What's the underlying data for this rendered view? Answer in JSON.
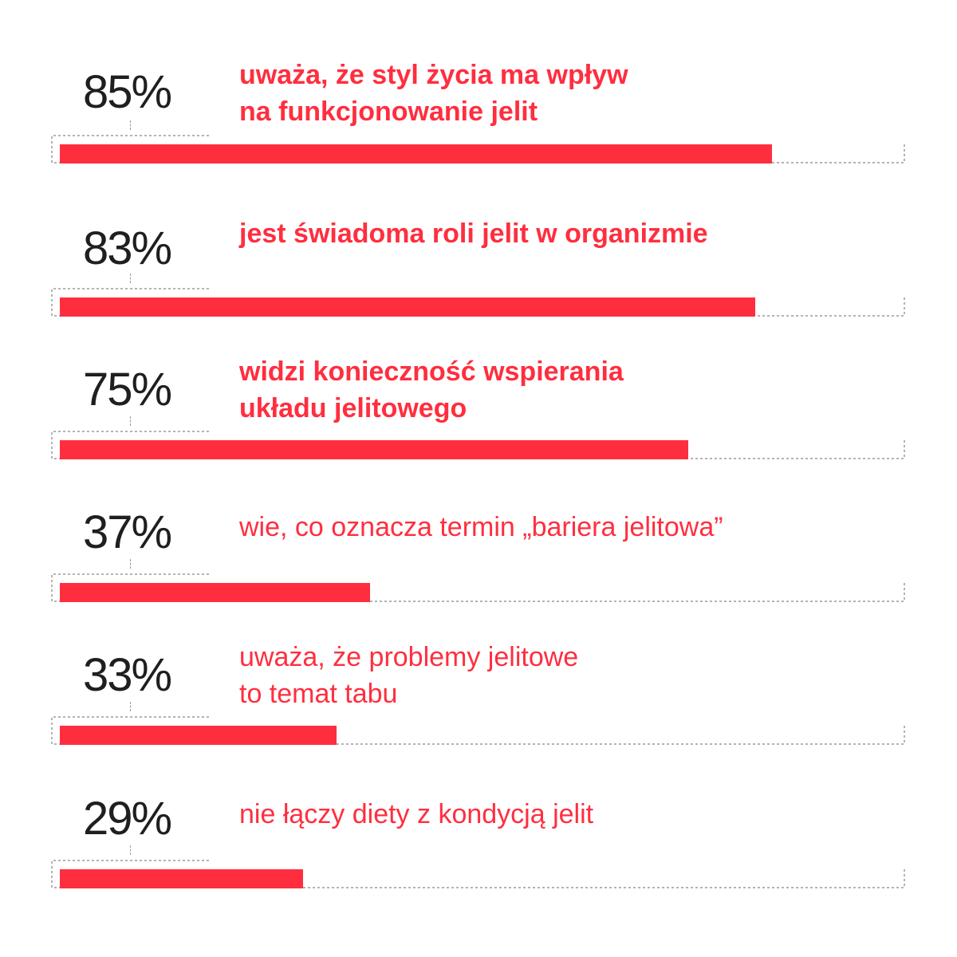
{
  "chart_data": {
    "type": "bar",
    "orientation": "horizontal",
    "xlim": [
      0,
      100
    ],
    "unit": "%",
    "bar_color": "#ff2e3f",
    "text_color": "#ff2e3f",
    "percent_color": "#1f1f1f",
    "bars": [
      {
        "value": 85,
        "label": "85%",
        "description": [
          "uważa, że styl życia ma wpływ",
          "na funkcjonowanie jelit"
        ],
        "emphasis": "bold"
      },
      {
        "value": 83,
        "label": "83%",
        "description": [
          "jest świadoma roli jelit w organizmie"
        ],
        "emphasis": "bold"
      },
      {
        "value": 75,
        "label": "75%",
        "description": [
          "widzi konieczność wspierania",
          "układu jelitowego"
        ],
        "emphasis": "bold"
      },
      {
        "value": 37,
        "label": "37%",
        "description": [
          "wie, co oznacza termin „bariera jelitowa”"
        ],
        "emphasis": "regular"
      },
      {
        "value": 33,
        "label": "33%",
        "description": [
          "uważa, że problemy jelitowe",
          "to temat tabu"
        ],
        "emphasis": "regular"
      },
      {
        "value": 29,
        "label": "29%",
        "description": [
          "nie łączy diety z kondycją jelit"
        ],
        "emphasis": "regular"
      }
    ]
  }
}
